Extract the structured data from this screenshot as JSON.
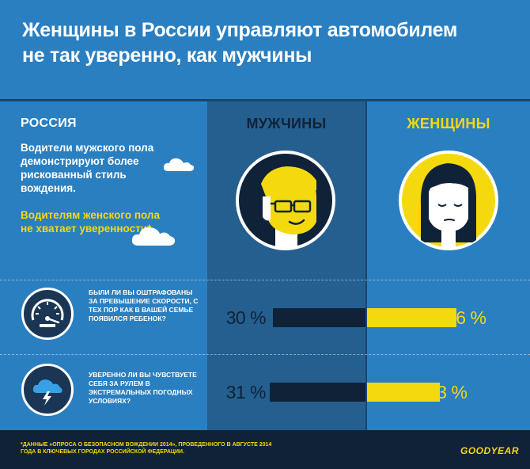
{
  "header": {
    "title_line1": "Женщины в России управляют автомобилем",
    "title_line2": "не так уверенно, как мужчины"
  },
  "left_panel": {
    "region": "РОССИЯ",
    "description_white": "Водители мужского пола демонстрируют более рискованный стиль вождения.",
    "description_yellow": "Водителям женского пола не хватает уверенности*"
  },
  "columns": {
    "men": "МУЖЧИНЫ",
    "women": "ЖЕНЩИНЫ"
  },
  "rows": [
    {
      "question": "Были ли вы оштрафованы за превышение скорости, с тех пор как в вашей семье появился ребенок?",
      "icon": "speedometer-icon",
      "men_label": "30 %",
      "women_label": "16 %"
    },
    {
      "question": "Уверенно ли вы чувствуете себя за рулем в экстремальных погодных условиях?",
      "icon": "storm-cloud-icon",
      "men_label": "31 %",
      "women_label": "13 %"
    }
  ],
  "chart_data": {
    "type": "bar",
    "categories": [
      "Были ли вы оштрафованы за превышение скорости, с тех пор как в вашей семье появился ребенок?",
      "Уверенно ли вы чувствуете себя за рулем в экстремальных погодных условиях?"
    ],
    "series": [
      {
        "name": "МУЖЧИНЫ",
        "values": [
          30,
          31
        ],
        "color": "#0f2237"
      },
      {
        "name": "ЖЕНЩИНЫ",
        "values": [
          16,
          13
        ],
        "color": "#f5d90f"
      }
    ],
    "unit": "%"
  },
  "footer": {
    "footnote": "*Данные «Опроса о безопасном вождении 2014», проведенного в августе 2014 года в ключевых городах Российской Федерации.",
    "brand": "GOODYEAR"
  },
  "colors": {
    "background": "#2a7fc1",
    "men_column": "#245f8f",
    "navy": "#0f2237",
    "yellow": "#f5d90f",
    "white": "#ffffff"
  }
}
